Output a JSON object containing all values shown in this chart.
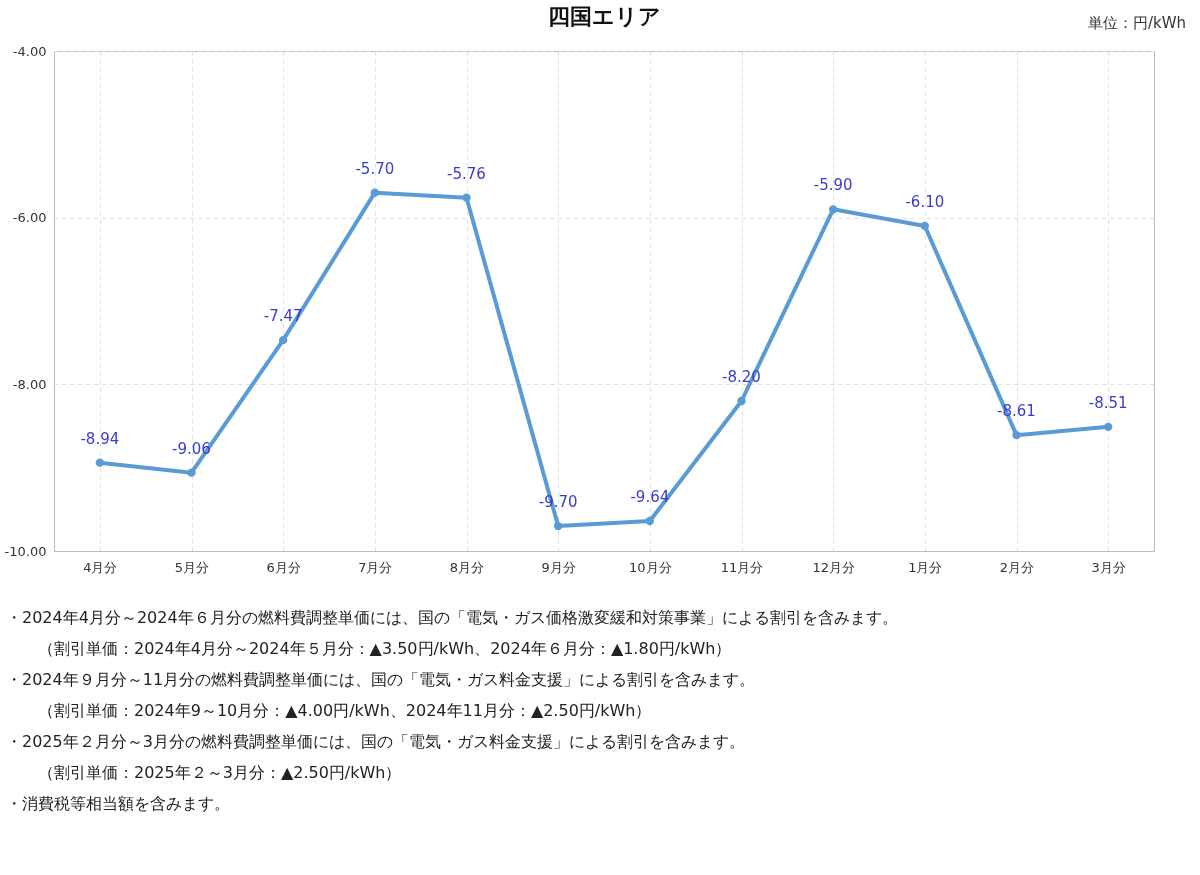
{
  "chart_data": {
    "type": "line",
    "title": "四国エリア",
    "categories": [
      "4月分",
      "5月分",
      "6月分",
      "7月分",
      "8月分",
      "9月分",
      "10月分",
      "11月分",
      "12月分",
      "1月分",
      "2月分",
      "3月分"
    ],
    "series": [
      {
        "color": "#5b9bd5",
        "values": [
          -8.94,
          -9.06,
          -7.47,
          -5.7,
          -5.76,
          -9.7,
          -9.64,
          -8.2,
          -5.9,
          -6.1,
          -8.61,
          -8.51
        ],
        "value_labels": [
          "-8.94",
          "-9.06",
          "-7.47",
          "-5.70",
          "-5.76",
          "-9.70",
          "-9.64",
          "-8.20",
          "-5.90",
          "-6.10",
          "-8.61",
          "-8.51"
        ]
      }
    ],
    "ylim": [
      -10,
      -4
    ],
    "yticks": [
      {
        "value": -10,
        "label": "-10.00"
      },
      {
        "value": -8,
        "label": "-8.00"
      },
      {
        "value": -6,
        "label": "-6.00"
      },
      {
        "value": -4,
        "label": "-4.00"
      }
    ],
    "grid": true,
    "marker": "circle",
    "line_style": "solid",
    "annotations": [
      "単位：円/kWh",
      "・2024年4月分～2024年６月分の燃料費調整単価には、国の「電気・ガス価格激変緩和対策事業」による割引を含みます。",
      "　　（割引単価：2024年4月分～2024年５月分：▲3.50円/kWh、2024年６月分：▲1.80円/kWh）",
      "・2024年９月分～11月分の燃料費調整単価には、国の「電気・ガス料金支援」による割引を含みます。",
      "　　（割引単価：2024年9～10月分：▲4.00円/kWh、2024年11月分：▲2.50円/kWh）",
      "・2025年２月分～3月分の燃料費調整単価には、国の「電気・ガス料金支援」による割引を含みます。",
      "　　（割引単価：2025年２～3月分：▲2.50円/kWh）",
      "・消費税等相当額を含みます。"
    ]
  }
}
